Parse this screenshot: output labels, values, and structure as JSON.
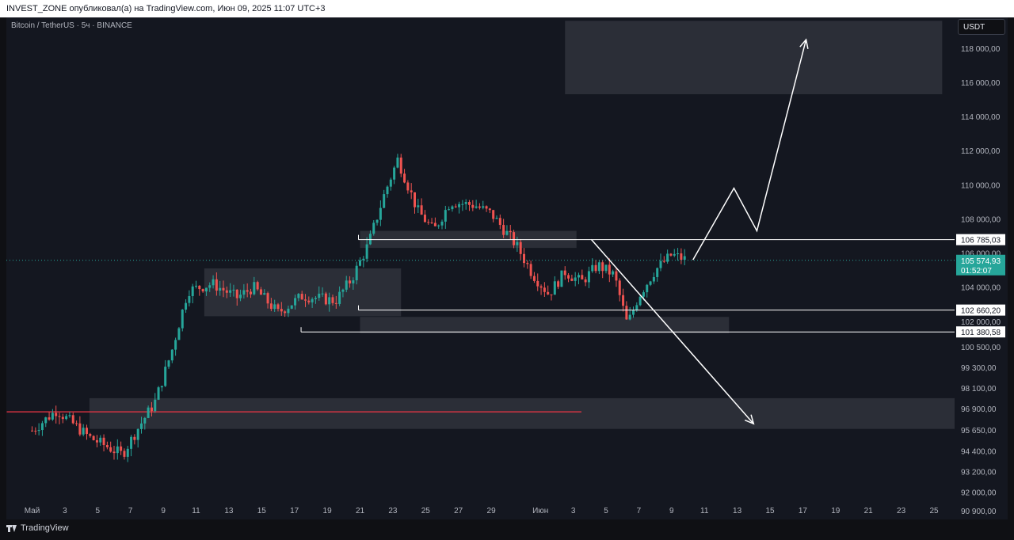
{
  "header": {
    "publish_line": "INVEST_ZONE опубликовал(а) на TradingView.com, Июн 09, 2025 11:07 UTC+3"
  },
  "symbol": {
    "title": "Bitcoin / TetherUS · 5ч · BINANCE"
  },
  "currency_button": "USDT",
  "price_axis": {
    "ticks": [
      {
        "label": "118 000,00",
        "value": 118000
      },
      {
        "label": "116 000,00",
        "value": 116000
      },
      {
        "label": "114 000,00",
        "value": 114000
      },
      {
        "label": "112 000,00",
        "value": 112000
      },
      {
        "label": "110 000,00",
        "value": 110000
      },
      {
        "label": "108 000,00",
        "value": 108000
      },
      {
        "label": "106 000,00",
        "value": 106000
      },
      {
        "label": "104 000,00",
        "value": 104000
      },
      {
        "label": "102 000,00",
        "value": 102000
      },
      {
        "label": "100 500,00",
        "value": 100500
      },
      {
        "label": "99 300,00",
        "value": 99300
      },
      {
        "label": "98 100,00",
        "value": 98100
      },
      {
        "label": "96 900,00",
        "value": 96900
      },
      {
        "label": "95 650,00",
        "value": 95650
      },
      {
        "label": "94 400,00",
        "value": 94400
      },
      {
        "label": "93 200,00",
        "value": 93200
      },
      {
        "label": "92 000,00",
        "value": 92000
      },
      {
        "label": "90 900,00",
        "value": 90900
      }
    ],
    "level_labels": [
      {
        "label": "106 785,03",
        "value": 106785.03
      },
      {
        "label": "102 660,20",
        "value": 102660.2
      },
      {
        "label": "101 380,58",
        "value": 101380.58
      }
    ],
    "current_price": {
      "label": "105 574,93",
      "countdown": "01:52:07",
      "value": 105574.93,
      "color": "#26a69a"
    }
  },
  "time_axis": {
    "labels": [
      {
        "label": "Май",
        "day": 1
      },
      {
        "label": "3",
        "day": 3
      },
      {
        "label": "5",
        "day": 5
      },
      {
        "label": "7",
        "day": 7
      },
      {
        "label": "9",
        "day": 9
      },
      {
        "label": "11",
        "day": 11
      },
      {
        "label": "13",
        "day": 13
      },
      {
        "label": "15",
        "day": 15
      },
      {
        "label": "17",
        "day": 17
      },
      {
        "label": "19",
        "day": 19
      },
      {
        "label": "21",
        "day": 21
      },
      {
        "label": "23",
        "day": 23
      },
      {
        "label": "25",
        "day": 25
      },
      {
        "label": "27",
        "day": 27
      },
      {
        "label": "29",
        "day": 29
      },
      {
        "label": "Июн",
        "day": 32
      },
      {
        "label": "3",
        "day": 34
      },
      {
        "label": "5",
        "day": 36
      },
      {
        "label": "7",
        "day": 38
      },
      {
        "label": "9",
        "day": 40
      },
      {
        "label": "11",
        "day": 42
      },
      {
        "label": "13",
        "day": 44
      },
      {
        "label": "15",
        "day": 46
      },
      {
        "label": "17",
        "day": 48
      },
      {
        "label": "19",
        "day": 50
      },
      {
        "label": "21",
        "day": 52
      },
      {
        "label": "23",
        "day": 54
      },
      {
        "label": "25",
        "day": 56
      }
    ]
  },
  "colors": {
    "up": "#26a69a",
    "down": "#ef5350",
    "zone": "#2f323c",
    "level_line": "#ffffff",
    "red_line": "#f23645",
    "current_dotted": "#26a69a"
  },
  "footer": {
    "brand": "TradingView"
  },
  "chart_data": {
    "type": "candlestick",
    "title": "Bitcoin / TetherUS · 5ч · BINANCE",
    "timeframe": "5h",
    "x_unit": "days from May 1, 2025",
    "ylim": [
      90400,
      119800
    ],
    "key_points": [
      {
        "day": 0.0,
        "close": 95600
      },
      {
        "day": 1.5,
        "close": 96800
      },
      {
        "day": 3.5,
        "close": 95200
      },
      {
        "day": 5.5,
        "close": 94200
      },
      {
        "day": 6.5,
        "close": 95800
      },
      {
        "day": 7.5,
        "close": 97300
      },
      {
        "day": 8.5,
        "close": 100200
      },
      {
        "day": 9.5,
        "close": 103800
      },
      {
        "day": 11.0,
        "close": 104200
      },
      {
        "day": 12.5,
        "close": 103400
      },
      {
        "day": 13.5,
        "close": 104000
      },
      {
        "day": 15.0,
        "close": 102500
      },
      {
        "day": 16.5,
        "close": 103500
      },
      {
        "day": 18.5,
        "close": 103200
      },
      {
        "day": 19.5,
        "close": 104500
      },
      {
        "day": 20.5,
        "close": 106500
      },
      {
        "day": 21.5,
        "close": 109500
      },
      {
        "day": 22.3,
        "close": 111500
      },
      {
        "day": 23.5,
        "close": 108500
      },
      {
        "day": 24.5,
        "close": 107300
      },
      {
        "day": 25.5,
        "close": 109000
      },
      {
        "day": 27.0,
        "close": 108800
      },
      {
        "day": 28.0,
        "close": 108300
      },
      {
        "day": 29.5,
        "close": 106500
      },
      {
        "day": 30.5,
        "close": 104800
      },
      {
        "day": 31.5,
        "close": 103600
      },
      {
        "day": 32.5,
        "close": 104900
      },
      {
        "day": 33.5,
        "close": 104300
      },
      {
        "day": 34.5,
        "close": 105300
      },
      {
        "day": 35.5,
        "close": 104700
      },
      {
        "day": 36.3,
        "close": 101800
      },
      {
        "day": 37.0,
        "close": 103500
      },
      {
        "day": 38.0,
        "close": 105000
      },
      {
        "day": 39.0,
        "close": 105900
      },
      {
        "day": 40.0,
        "close": 105575
      }
    ],
    "zones": [
      {
        "day_from": 32.5,
        "day_to": 55.5,
        "price_from": 115300,
        "price_to": 119600
      },
      {
        "day_from": 20.0,
        "day_to": 33.2,
        "price_from": 106300,
        "price_to": 107300
      },
      {
        "day_from": 20.0,
        "day_to": 42.5,
        "price_from": 101300,
        "price_to": 102260
      },
      {
        "day_from": 10.5,
        "day_to": 22.5,
        "price_from": 102300,
        "price_to": 105100
      },
      {
        "day_from": 3.5,
        "day_to": 60.0,
        "price_from": 95700,
        "price_to": 97500
      }
    ],
    "levels": [
      {
        "price": 106785.03,
        "day_from": 20.0
      },
      {
        "price": 102660.2,
        "day_from": 20.0
      },
      {
        "price": 101380.58,
        "day_from": 16.5
      }
    ],
    "red_line": {
      "price": 96700,
      "day_from": 0,
      "day_to": 33.5
    },
    "projection_up": [
      {
        "day": 40.3,
        "price": 105600
      },
      {
        "day": 42.8,
        "price": 109800
      },
      {
        "day": 44.2,
        "price": 107300
      },
      {
        "day": 47.2,
        "price": 118500
      }
    ],
    "projection_down": [
      {
        "day": 34.1,
        "price": 106800
      },
      {
        "day": 44.0,
        "price": 96000
      }
    ]
  }
}
